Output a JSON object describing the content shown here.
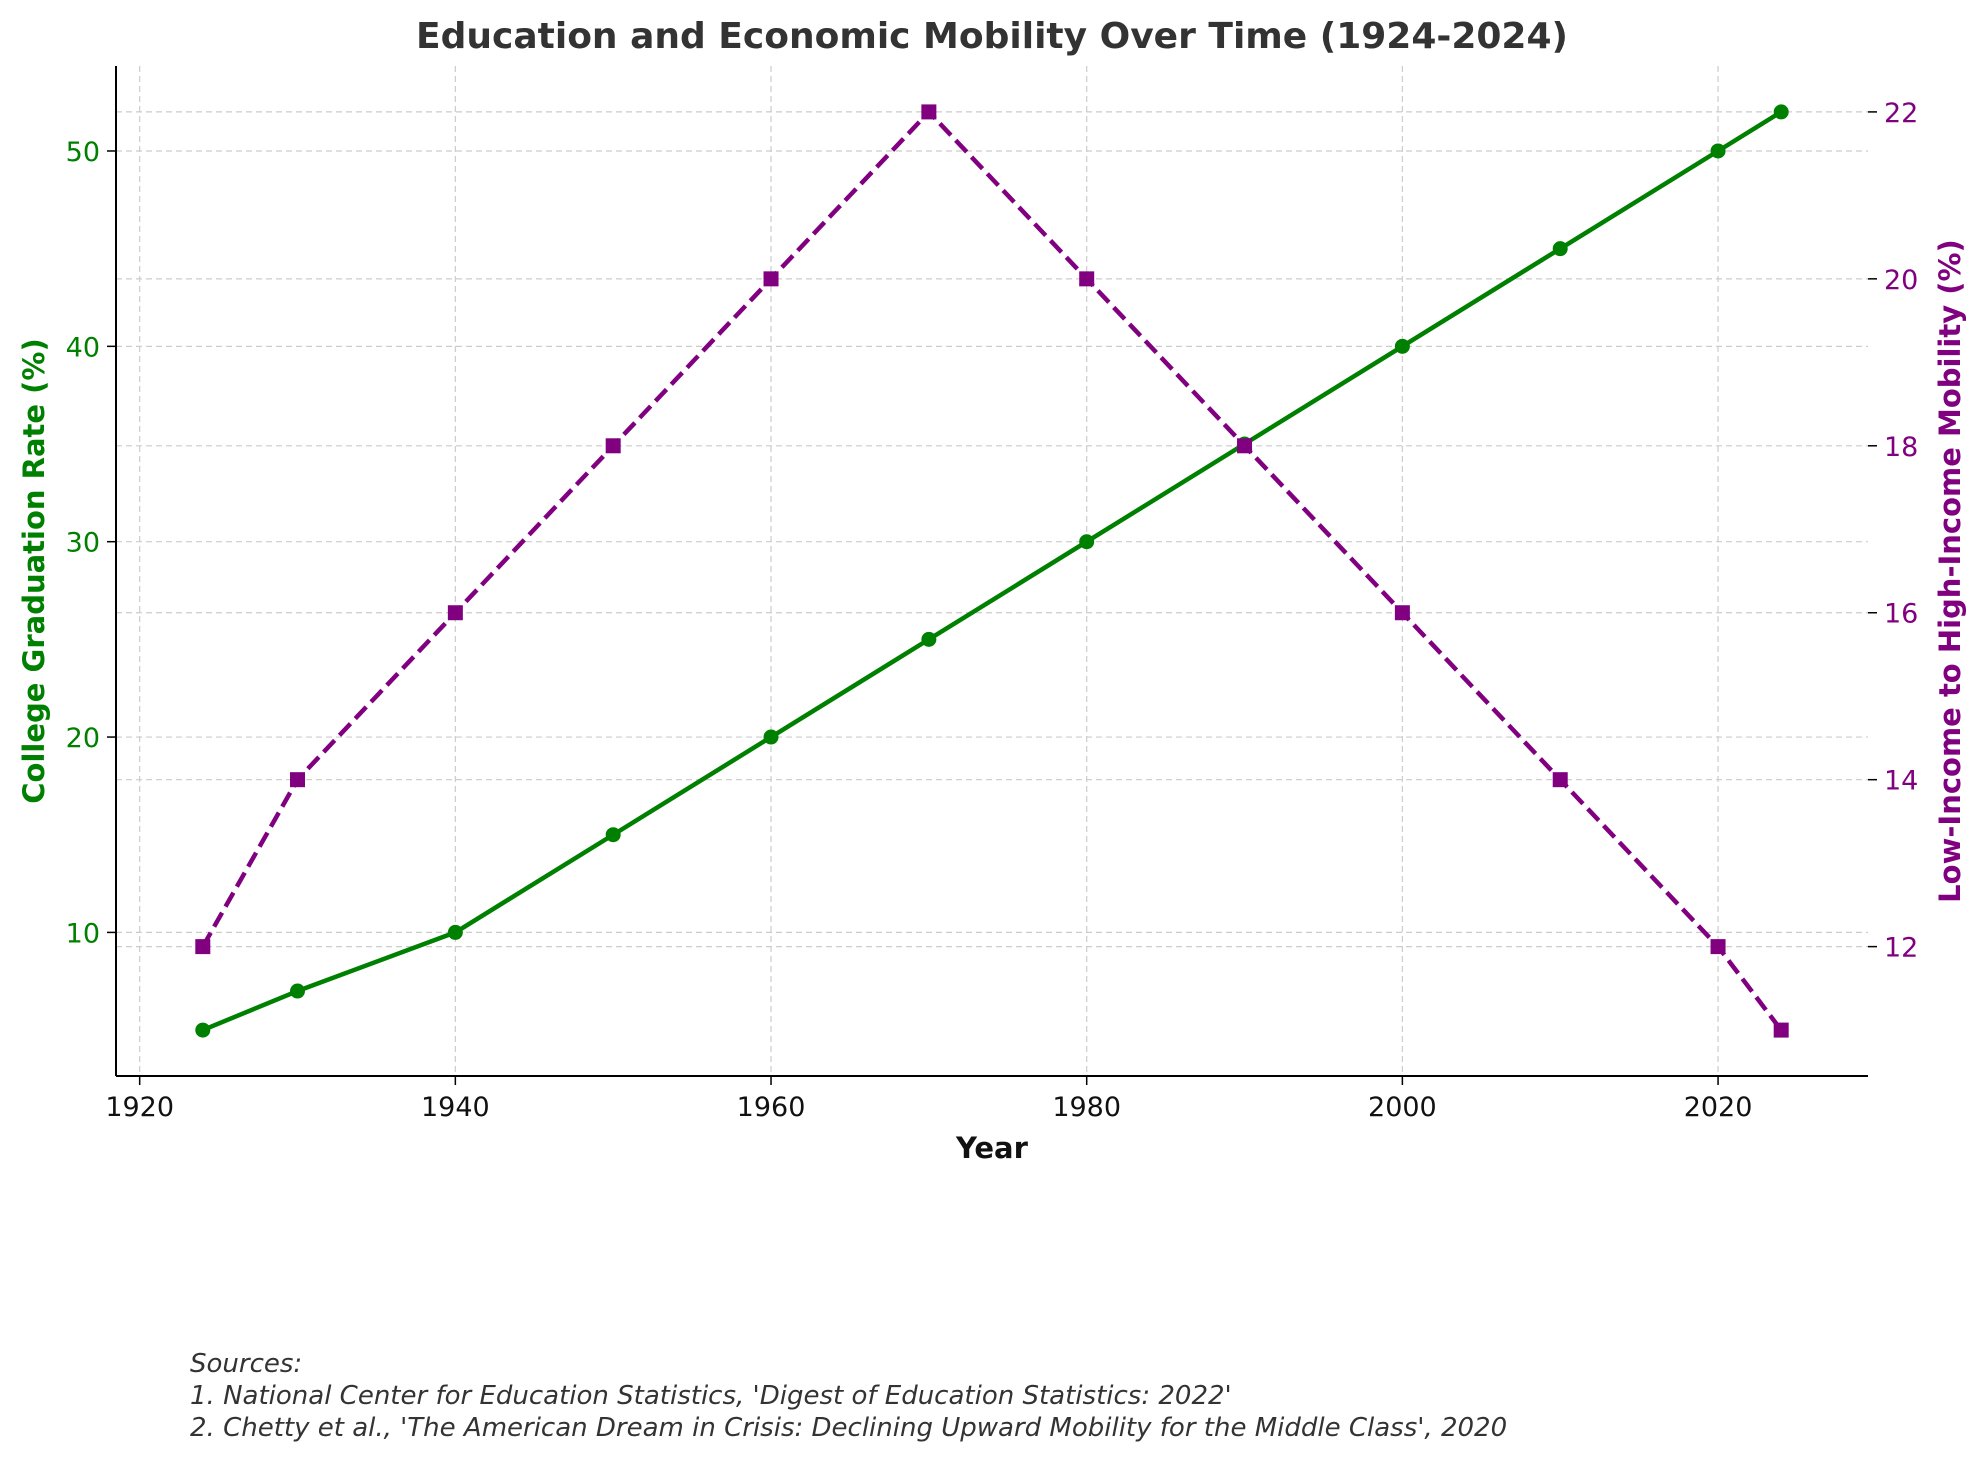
{
  "chart_data": {
    "type": "line",
    "title": "Education and Economic Mobility Over Time (1924-2024)",
    "xlabel": "Year",
    "ylabel_left": "College Graduation Rate (%)",
    "ylabel_right": "Low-Income to High-Income Mobility (%)",
    "x": [
      1924,
      1930,
      1940,
      1950,
      1960,
      1970,
      1980,
      1990,
      2000,
      2010,
      2020,
      2024
    ],
    "xlim": [
      1918.5,
      2029.5
    ],
    "ylim_left": [
      2.65,
      54.35
    ],
    "ylim_right": [
      10.45,
      22.55
    ],
    "x_ticks": [
      1920,
      1940,
      1960,
      1980,
      2000,
      2020
    ],
    "y_ticks_left": [
      10,
      20,
      30,
      40,
      50
    ],
    "y_ticks_right": [
      12,
      14,
      16,
      18,
      20,
      22
    ],
    "grid": true,
    "series": [
      {
        "name": "College Graduation Rate (%)",
        "axis": "left",
        "color": "#008000",
        "linestyle": "solid",
        "marker": "circle",
        "values": [
          5,
          7,
          10,
          15,
          20,
          25,
          30,
          35,
          40,
          45,
          50,
          52
        ]
      },
      {
        "name": "Low-Income to High-Income Mobility (%)",
        "axis": "right",
        "color": "#800080",
        "linestyle": "dashed",
        "marker": "square",
        "values": [
          12,
          14,
          16,
          18,
          20,
          22,
          20,
          18,
          16,
          14,
          12,
          11
        ]
      }
    ]
  },
  "sources": {
    "heading": "Sources:",
    "line1": "1. National Center for Education Statistics, 'Digest of Education Statistics: 2022'",
    "line2": "2. Chetty et al., 'The American Dream in Crisis: Declining Upward Mobility for the Middle Class', 2020"
  },
  "colors": {
    "left_axis": "#008000",
    "right_axis": "#800080",
    "title": "#333333",
    "grid": "#cccccc"
  }
}
